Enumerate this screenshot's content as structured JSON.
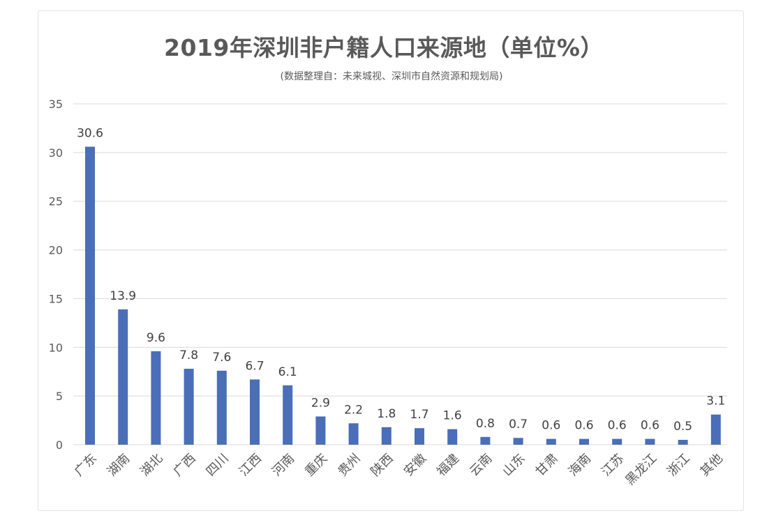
{
  "chart_data": {
    "type": "bar",
    "title": "2019年深圳非户籍人口来源地（单位%）",
    "subtitle": "(数据整理自：未来城视、深圳市自然资源和规划局)",
    "categories": [
      "广东",
      "湖南",
      "湖北",
      "广西",
      "四川",
      "江西",
      "河南",
      "重庆",
      "贵州",
      "陕西",
      "安徽",
      "福建",
      "云南",
      "山东",
      "甘肃",
      "海南",
      "江苏",
      "黑龙江",
      "浙江",
      "其他"
    ],
    "values": [
      30.6,
      13.9,
      9.6,
      7.8,
      7.6,
      6.7,
      6.1,
      2.9,
      2.2,
      1.8,
      1.7,
      1.6,
      0.8,
      0.7,
      0.6,
      0.6,
      0.6,
      0.6,
      0.5,
      3.1
    ],
    "data_labels": [
      "30.6",
      "13.9",
      "9.6",
      "7.8",
      "7.6",
      "6.7",
      "6.1",
      "2.9",
      "2.2",
      "1.8",
      "1.7",
      "1.6",
      "0.8",
      "0.7",
      "0.6",
      "0.6",
      "0.6",
      "0.6",
      "0.5",
      "3.1"
    ],
    "yticks": [
      "0",
      "5",
      "10",
      "15",
      "20",
      "25",
      "30",
      "35"
    ],
    "ylim": [
      0,
      35
    ],
    "xlabel": "",
    "ylabel": "",
    "grid": true,
    "bar_color": "#4a6eb8",
    "grid_color": "#d9d9d9"
  }
}
